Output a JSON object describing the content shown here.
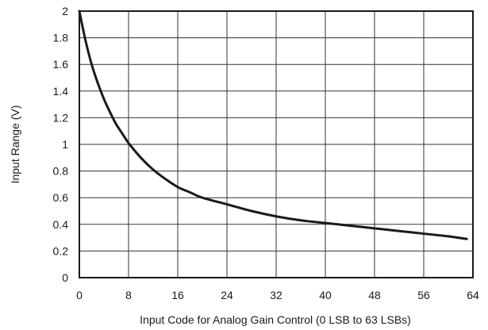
{
  "chart_data": {
    "type": "line",
    "title": "",
    "xlabel": "Input Code for Analog Gain Control (0 LSB to 63 LSBs)",
    "ylabel": "Input Range (V)",
    "xlim": [
      0,
      64
    ],
    "ylim": [
      0,
      2
    ],
    "grid": true,
    "x_ticks": [
      0,
      8,
      16,
      24,
      32,
      40,
      48,
      56,
      64
    ],
    "x_tick_labels": [
      "0",
      "8",
      "16",
      "24",
      "32",
      "40",
      "48",
      "56",
      "64"
    ],
    "y_ticks": [
      0,
      0.2,
      0.4,
      0.6,
      0.8,
      1,
      1.2,
      1.4,
      1.6,
      1.8,
      2
    ],
    "y_tick_labels": [
      "0",
      "0.2",
      "0.4",
      "0.6",
      "0.8",
      "1",
      "1.2",
      "1.4",
      "1.6",
      "1.8",
      "2"
    ],
    "series": [
      {
        "color": "#1a1a1a",
        "x": [
          0,
          1,
          2,
          3,
          4,
          5,
          6,
          7,
          8,
          10,
          12,
          14,
          16,
          18,
          20,
          24,
          28,
          32,
          36,
          40,
          44,
          48,
          52,
          56,
          60,
          63
        ],
        "y": [
          2.0,
          1.78,
          1.6,
          1.46,
          1.34,
          1.24,
          1.15,
          1.08,
          1.01,
          0.9,
          0.81,
          0.74,
          0.68,
          0.64,
          0.6,
          0.55,
          0.5,
          0.46,
          0.43,
          0.41,
          0.39,
          0.37,
          0.35,
          0.33,
          0.31,
          0.29
        ]
      }
    ]
  }
}
